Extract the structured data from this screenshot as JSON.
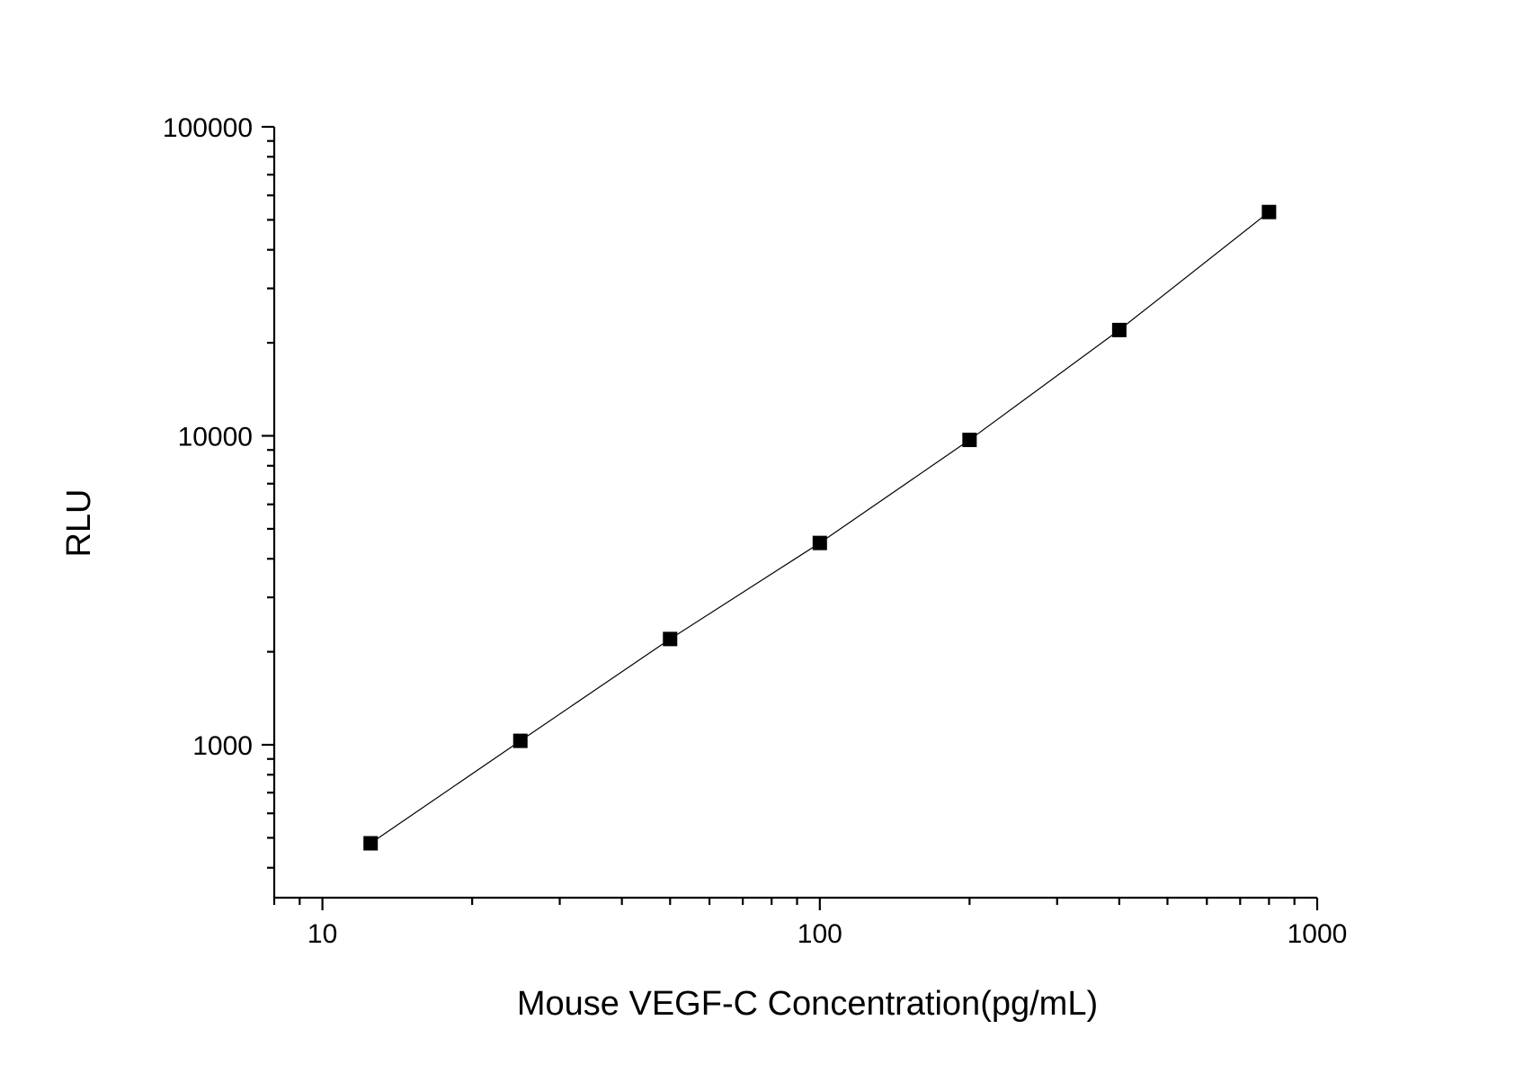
{
  "chart_data": {
    "type": "line",
    "title": "",
    "xlabel": "Mouse VEGF-C Concentration(pg/mL)",
    "ylabel": "RLU",
    "x_scale": "log",
    "y_scale": "log",
    "xlim": [
      8,
      1000
    ],
    "ylim": [
      320,
      100000
    ],
    "x_ticks": [
      {
        "value": 10,
        "label": "10"
      },
      {
        "value": 100,
        "label": "100"
      },
      {
        "value": 1000,
        "label": "1000"
      }
    ],
    "y_ticks": [
      {
        "value": 1000,
        "label": "1000"
      },
      {
        "value": 10000,
        "label": "10000"
      },
      {
        "value": 100000,
        "label": "100000"
      }
    ],
    "grid": false,
    "legend": "none",
    "marker": "square",
    "series": [
      {
        "x": [
          12.5,
          25,
          50,
          100,
          200,
          400,
          800
        ],
        "y": [
          480,
          1030,
          2200,
          4500,
          9700,
          22000,
          53000
        ]
      }
    ]
  }
}
